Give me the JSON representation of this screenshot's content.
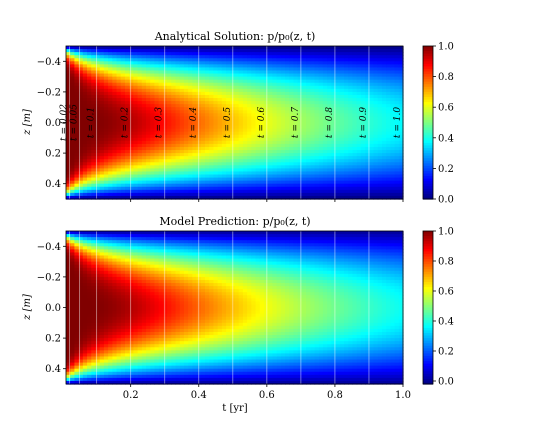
{
  "chart_data": [
    {
      "type": "heatmap",
      "title": "Analytical Solution: p/p₀(z, t)",
      "xlabel": "",
      "ylabel": "z [m]",
      "xlim": [
        0.01,
        1.0
      ],
      "ylim": [
        0.5,
        -0.5
      ],
      "y_ticks": [
        "−0.4",
        "−0.2",
        "0.0",
        "0.2",
        "0.4"
      ],
      "y_tick_values": [
        -0.4,
        -0.2,
        0.0,
        0.2,
        0.4
      ],
      "x_ticks": [],
      "colorbar": {
        "range": [
          0.0,
          1.0
        ],
        "ticks": [
          "0.0",
          "0.2",
          "0.4",
          "0.6",
          "0.8",
          "1.0"
        ],
        "tick_values": [
          0.0,
          0.2,
          0.4,
          0.6,
          0.8,
          1.0
        ],
        "colormap": "jet"
      },
      "time_markers": [
        {
          "t": 0.02,
          "label": "t = 0.02"
        },
        {
          "t": 0.05,
          "label": "t = 0.05"
        },
        {
          "t": 0.1,
          "label": "t = 0.1"
        },
        {
          "t": 0.2,
          "label": "t = 0.2"
        },
        {
          "t": 0.3,
          "label": "t = 0.3"
        },
        {
          "t": 0.4,
          "label": "t = 0.4"
        },
        {
          "t": 0.5,
          "label": "t = 0.5"
        },
        {
          "t": 0.6,
          "label": "t = 0.6"
        },
        {
          "t": 0.7,
          "label": "t = 0.7"
        },
        {
          "t": 0.8,
          "label": "t = 0.8"
        },
        {
          "t": 0.9,
          "label": "t = 0.9"
        },
        {
          "t": 1.0,
          "label": "t = 1.0"
        }
      ]
    },
    {
      "type": "heatmap",
      "title": "Model Prediction: p/p₀(z, t)",
      "xlabel": "t [yr]",
      "ylabel": "z [m]",
      "xlim": [
        0.01,
        1.0
      ],
      "ylim": [
        0.5,
        -0.5
      ],
      "y_ticks": [
        "−0.4",
        "−0.2",
        "0.0",
        "0.2",
        "0.4"
      ],
      "y_tick_values": [
        -0.4,
        -0.2,
        0.0,
        0.2,
        0.4
      ],
      "x_ticks": [
        "0.2",
        "0.4",
        "0.6",
        "0.8",
        "1.0"
      ],
      "x_tick_values": [
        0.2,
        0.4,
        0.6,
        0.8,
        1.0
      ],
      "colorbar": {
        "range": [
          -0.02,
          1.0
        ],
        "ticks": [
          "0.0",
          "0.2",
          "0.4",
          "0.6",
          "0.8",
          "1.0"
        ],
        "tick_values": [
          0.0,
          0.2,
          0.4,
          0.6,
          0.8,
          1.0
        ],
        "colormap": "jet"
      },
      "time_markers": [
        {
          "t": 0.02
        },
        {
          "t": 0.05
        },
        {
          "t": 0.1
        },
        {
          "t": 0.2
        },
        {
          "t": 0.3
        },
        {
          "t": 0.4
        },
        {
          "t": 0.5
        },
        {
          "t": 0.6
        },
        {
          "t": 0.7
        },
        {
          "t": 0.8
        },
        {
          "t": 0.9
        },
        {
          "t": 1.0
        }
      ]
    }
  ]
}
